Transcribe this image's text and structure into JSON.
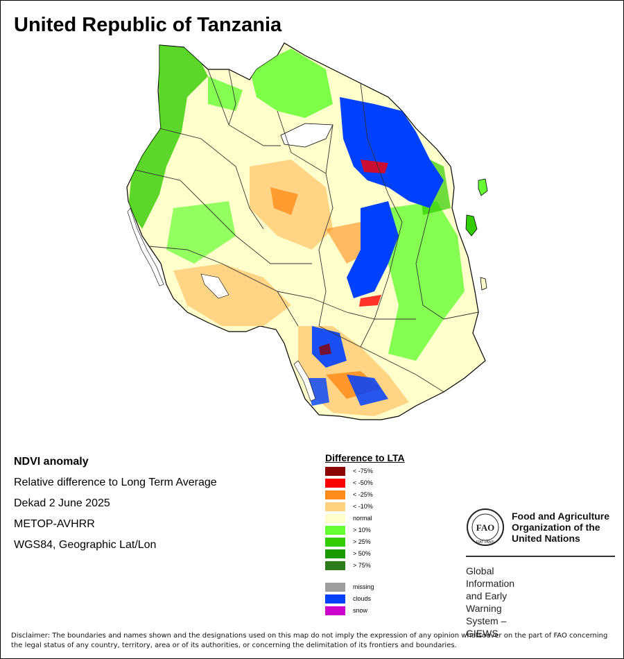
{
  "title": "United Republic of Tanzania",
  "info": {
    "product": "NDVI anomaly",
    "description": "Relative difference to Long Term Average",
    "period": "Dekad 2 June 2025",
    "sensor": "METOP-AVHRR",
    "projection": "WGS84, Geographic Lat/Lon"
  },
  "legend": {
    "title": "Difference to LTA",
    "classes": [
      {
        "label": "< -75%",
        "color": "#8b0000"
      },
      {
        "label": "< -50%",
        "color": "#ff0000"
      },
      {
        "label": "< -25%",
        "color": "#ff8c1a"
      },
      {
        "label": "< -10%",
        "color": "#ffd27f"
      },
      {
        "label": "normal",
        "color": "#ffffcc"
      },
      {
        "label": "> 10%",
        "color": "#66ff33"
      },
      {
        "label": "> 25%",
        "color": "#33cc00"
      },
      {
        "label": "> 50%",
        "color": "#1a9900"
      },
      {
        "label": "> 75%",
        "color": "#2d7a1a"
      }
    ],
    "special": [
      {
        "label": "missing",
        "color": "#9e9e9e"
      },
      {
        "label": "clouds",
        "color": "#0040ff"
      },
      {
        "label": "snow",
        "color": "#cc00cc"
      }
    ]
  },
  "organization": {
    "name_line1": "Food and Agriculture",
    "name_line2": "Organization of the",
    "name_line3": "United Nations",
    "logo_text": "FAO",
    "logo_motto": "FIAT PANIS",
    "system_line1": "Global Information and Early",
    "system_line2": "Warning System – GIEWS"
  },
  "disclaimer": "Disclaimer: The boundaries and names shown and the designations used on this map do not imply the expression of any opinion whatsoever on the part of FAO concerning the legal status of any country, territory, area or of its authorities, or concerning the delimitation of its frontiers and boundaries."
}
